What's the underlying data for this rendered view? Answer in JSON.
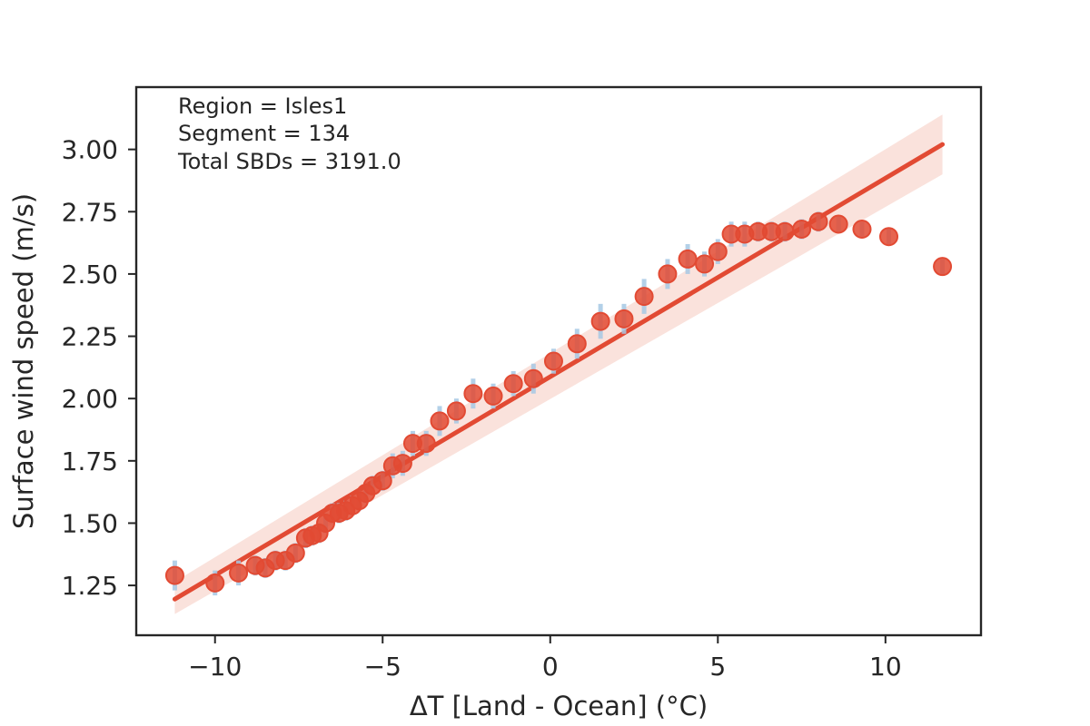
{
  "chart_data": {
    "type": "scatter",
    "title": "",
    "xlabel": "ΔT [Land - Ocean] (°C)",
    "ylabel": "Surface wind speed (m/s)",
    "xlim": [
      -12.35,
      12.85
    ],
    "ylim": [
      1.05,
      3.25
    ],
    "x_ticks": [
      -10,
      -5,
      0,
      5,
      10
    ],
    "x_tick_labels": [
      "−10",
      "−5",
      "0",
      "5",
      "10"
    ],
    "y_ticks": [
      1.25,
      1.5,
      1.75,
      2.0,
      2.25,
      2.5,
      2.75,
      3.0
    ],
    "y_tick_labels": [
      "1.25",
      "1.50",
      "1.75",
      "2.00",
      "2.25",
      "2.50",
      "2.75",
      "3.00"
    ],
    "grid": false,
    "annotations": [
      "Region = Isles1",
      "Segment = 134",
      "Total SBDs = 3191.0"
    ],
    "points": {
      "x": [
        -11.2,
        -10.0,
        -9.3,
        -8.8,
        -8.5,
        -8.2,
        -7.9,
        -7.6,
        -7.3,
        -7.1,
        -6.9,
        -6.7,
        -6.5,
        -6.3,
        -6.1,
        -5.9,
        -5.7,
        -5.5,
        -5.3,
        -5.0,
        -4.7,
        -4.4,
        -4.1,
        -3.7,
        -3.3,
        -2.8,
        -2.3,
        -1.7,
        -1.1,
        -0.5,
        0.1,
        0.8,
        1.5,
        2.2,
        2.8,
        3.5,
        4.1,
        4.6,
        5.0,
        5.4,
        5.8,
        6.2,
        6.6,
        7.0,
        7.5,
        8.0,
        8.6,
        9.3,
        10.1,
        11.7
      ],
      "y": [
        1.29,
        1.26,
        1.3,
        1.33,
        1.32,
        1.35,
        1.35,
        1.38,
        1.44,
        1.45,
        1.46,
        1.5,
        1.54,
        1.54,
        1.55,
        1.57,
        1.59,
        1.62,
        1.65,
        1.67,
        1.73,
        1.74,
        1.82,
        1.82,
        1.91,
        1.95,
        2.02,
        2.01,
        2.06,
        2.08,
        2.15,
        2.22,
        2.31,
        2.32,
        2.41,
        2.5,
        2.56,
        2.54,
        2.59,
        2.66,
        2.66,
        2.67,
        2.67,
        2.67,
        2.68,
        2.71,
        2.7,
        2.68,
        2.65,
        2.53
      ],
      "err": [
        0.06,
        0.05,
        0.05,
        0.04,
        0.04,
        0.04,
        0.04,
        0.04,
        0.04,
        0.04,
        0.04,
        0.04,
        0.04,
        0.04,
        0.04,
        0.04,
        0.04,
        0.04,
        0.04,
        0.04,
        0.05,
        0.05,
        0.05,
        0.05,
        0.06,
        0.05,
        0.06,
        0.05,
        0.05,
        0.06,
        0.05,
        0.06,
        0.07,
        0.06,
        0.07,
        0.06,
        0.06,
        0.05,
        0.05,
        0.05,
        0.05,
        0.04,
        0.04,
        0.04,
        0.04,
        0.04,
        0.03,
        0.03,
        0.03,
        0.03
      ]
    },
    "regression": {
      "x": [
        -11.2,
        11.7
      ],
      "y": [
        1.195,
        3.02
      ],
      "ci_low": [
        1.135,
        2.9
      ],
      "ci_high": [
        1.265,
        3.14
      ]
    },
    "colors": {
      "point": "#e24a33",
      "errorbar": "#a6c8e4",
      "line": "#e24a33",
      "band": "#f6cfc5"
    }
  }
}
